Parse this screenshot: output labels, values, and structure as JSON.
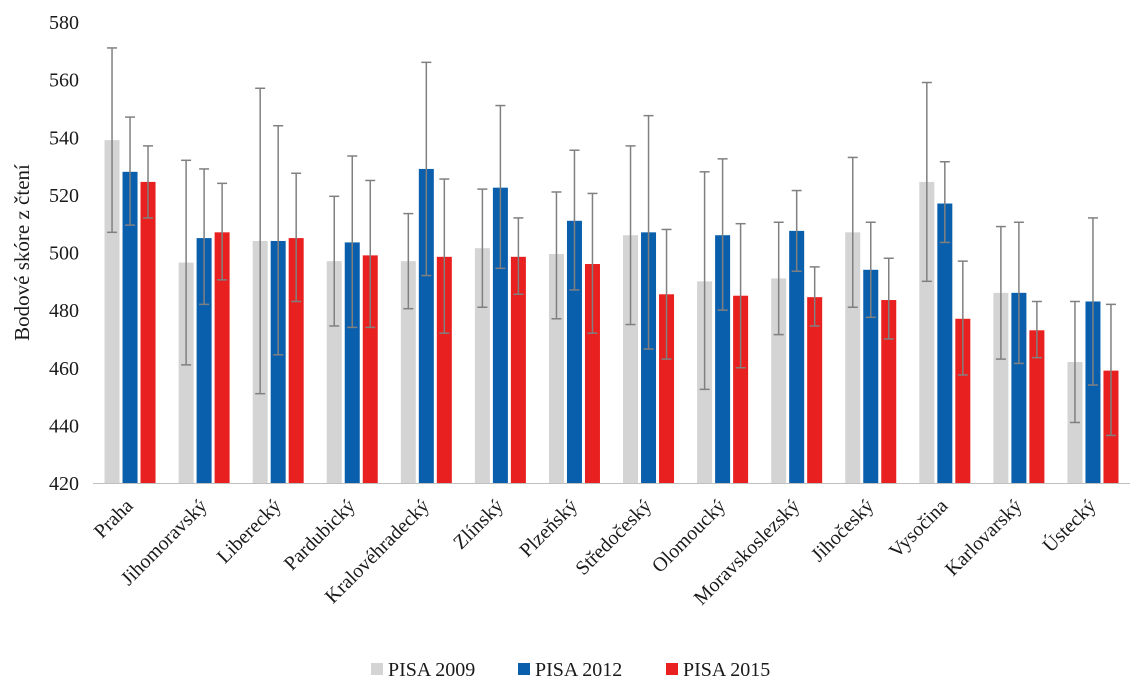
{
  "chart_data": {
    "type": "bar",
    "title": "",
    "xlabel": "",
    "ylabel": "Bodové skóre z čtení",
    "ylim": [
      420,
      580
    ],
    "yticks": [
      420,
      440,
      460,
      480,
      500,
      520,
      540,
      560,
      580
    ],
    "grid": false,
    "legend_position": "bottom",
    "categories": [
      "Praha",
      "Jihomoravský",
      "Liberecký",
      "Pardubický",
      "Kralovéhradecký",
      "Zlínský",
      "Plzeňský",
      "Středočeský",
      "Olomoucký",
      "Moravskoslezský",
      "Jihočeský",
      "Vysočina",
      "Karlovarský",
      "Ústecký"
    ],
    "series": [
      {
        "name": "PISA 2009",
        "color": "#d4d4d4",
        "values": [
          539,
          496.5,
          504,
          497,
          497,
          501.5,
          499.5,
          506,
          490,
          491,
          507,
          524.5,
          486,
          462
        ],
        "err_low": [
          507,
          461,
          451,
          474.5,
          480.5,
          481,
          477,
          475,
          452.5,
          471.5,
          481,
          490,
          463,
          441
        ],
        "err_high": [
          571,
          532,
          557,
          519.5,
          513.5,
          522,
          521,
          537,
          528,
          510.5,
          533,
          559,
          509,
          483
        ]
      },
      {
        "name": "PISA 2012",
        "color": "#0a5fac",
        "values": [
          528,
          505,
          504,
          503.5,
          529,
          522.5,
          511,
          507,
          506,
          507.5,
          494,
          517,
          486,
          483
        ],
        "err_low": [
          509.5,
          482,
          464.5,
          474,
          492,
          494.5,
          487,
          466.5,
          480,
          493.5,
          477.5,
          503.5,
          461.5,
          454
        ],
        "err_high": [
          547,
          529,
          544,
          533.5,
          566,
          551,
          535.5,
          547.5,
          532.5,
          521.5,
          510.5,
          531.5,
          510.5,
          512
        ]
      },
      {
        "name": "PISA 2015",
        "color": "#e8201f",
        "values": [
          524.5,
          507,
          505,
          499,
          498.5,
          498.5,
          496,
          485.5,
          485,
          484.5,
          483.5,
          477,
          473,
          459
        ],
        "err_low": [
          512,
          490.5,
          483,
          474,
          472,
          485.5,
          472,
          463,
          460,
          474.5,
          470,
          457.5,
          463.5,
          436.5
        ],
        "err_high": [
          537,
          524,
          527.5,
          525,
          525.5,
          512,
          520.5,
          508,
          510,
          495,
          498,
          497,
          483,
          482
        ]
      }
    ]
  }
}
